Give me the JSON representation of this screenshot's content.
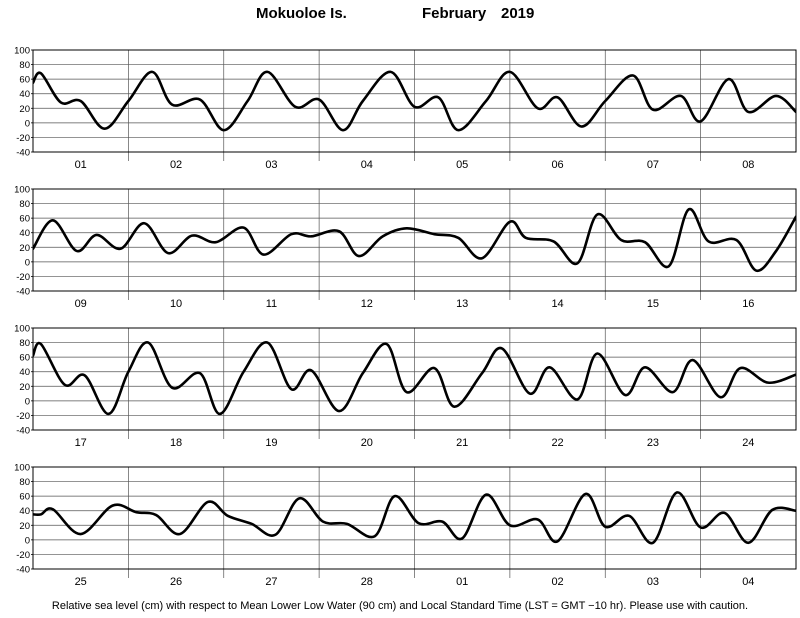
{
  "title": {
    "station": "Mokuoloe Is.",
    "month": "February",
    "year": "2019"
  },
  "footnote": "Relative sea level (cm) with respect to Mean Lower Low Water (90 cm) and Local Standard Time (LST = GMT −10 hr). Please use with caution.",
  "chart_data": [
    {
      "type": "line",
      "panel": 1,
      "ylim": [
        -40,
        100
      ],
      "yticks": [
        -40,
        -20,
        0,
        20,
        40,
        60,
        80,
        100
      ],
      "day_labels": [
        "01",
        "02",
        "03",
        "04",
        "05",
        "06",
        "07",
        "08"
      ],
      "xlim_hours": [
        0,
        192
      ],
      "series": [
        {
          "x_hours": [
            0,
            2,
            7,
            12,
            18,
            24,
            30,
            35,
            42,
            48,
            54,
            59,
            66,
            72,
            78,
            83,
            90,
            96,
            102,
            107,
            114,
            120,
            127,
            132,
            138,
            144,
            151,
            156,
            163,
            168,
            175,
            180,
            187,
            192
          ],
          "y": [
            55,
            68,
            28,
            30,
            -8,
            30,
            70,
            25,
            32,
            -10,
            30,
            70,
            22,
            32,
            -10,
            30,
            70,
            22,
            35,
            -10,
            30,
            70,
            20,
            35,
            -5,
            30,
            65,
            18,
            37,
            2,
            60,
            15,
            37,
            15
          ]
        }
      ]
    },
    {
      "type": "line",
      "panel": 2,
      "ylim": [
        -40,
        100
      ],
      "yticks": [
        -40,
        -20,
        0,
        20,
        40,
        60,
        80,
        100
      ],
      "day_labels": [
        "09",
        "10",
        "11",
        "12",
        "13",
        "14",
        "15",
        "16"
      ],
      "xlim_hours": [
        0,
        192
      ],
      "series": [
        {
          "x_hours": [
            0,
            5,
            11,
            16,
            22,
            28,
            34,
            40,
            46,
            53,
            58,
            65,
            70,
            77,
            82,
            88,
            94,
            101,
            107,
            113,
            120,
            124,
            131,
            137,
            142,
            148,
            154,
            160,
            165,
            170,
            177,
            182,
            187,
            192
          ],
          "y": [
            18,
            57,
            15,
            37,
            18,
            53,
            12,
            36,
            27,
            47,
            10,
            38,
            35,
            42,
            8,
            35,
            46,
            38,
            33,
            5,
            55,
            33,
            28,
            -2,
            65,
            30,
            27,
            -6,
            72,
            28,
            30,
            -12,
            15,
            62
          ]
        }
      ]
    },
    {
      "type": "line",
      "panel": 3,
      "ylim": [
        -40,
        100
      ],
      "yticks": [
        -40,
        -20,
        0,
        20,
        40,
        60,
        80,
        100
      ],
      "day_labels": [
        "17",
        "18",
        "19",
        "20",
        "21",
        "22",
        "23",
        "24"
      ],
      "xlim_hours": [
        0,
        192
      ],
      "series": [
        {
          "x_hours": [
            0,
            2,
            8,
            13,
            19,
            24,
            29,
            35,
            42,
            47,
            53,
            59,
            65,
            70,
            77,
            83,
            89,
            94,
            101,
            106,
            113,
            118,
            125,
            130,
            137,
            142,
            149,
            154,
            161,
            166,
            173,
            178,
            185,
            192
          ],
          "y": [
            62,
            78,
            22,
            35,
            -18,
            40,
            80,
            18,
            38,
            -18,
            40,
            80,
            16,
            42,
            -14,
            38,
            78,
            12,
            45,
            -8,
            38,
            72,
            10,
            46,
            2,
            65,
            8,
            46,
            12,
            56,
            5,
            45,
            25,
            36
          ]
        }
      ]
    },
    {
      "type": "line",
      "panel": 4,
      "ylim": [
        -40,
        100
      ],
      "yticks": [
        -40,
        -20,
        0,
        20,
        40,
        60,
        80,
        100
      ],
      "day_labels": [
        "25",
        "26",
        "27",
        "28",
        "01",
        "02",
        "03",
        "04"
      ],
      "xlim_hours": [
        0,
        192
      ],
      "series": [
        {
          "x_hours": [
            0,
            2,
            5,
            12,
            20,
            26,
            31,
            37,
            44,
            49,
            55,
            61,
            67,
            73,
            79,
            86,
            91,
            97,
            103,
            108,
            114,
            120,
            127,
            132,
            139,
            144,
            150,
            156,
            162,
            168,
            174,
            180,
            186,
            192
          ],
          "y": [
            35,
            35,
            42,
            8,
            47,
            38,
            34,
            8,
            52,
            33,
            22,
            7,
            57,
            25,
            22,
            5,
            60,
            23,
            25,
            2,
            62,
            20,
            28,
            -2,
            63,
            18,
            33,
            -4,
            65,
            17,
            37,
            -4,
            41,
            40
          ]
        }
      ]
    }
  ]
}
